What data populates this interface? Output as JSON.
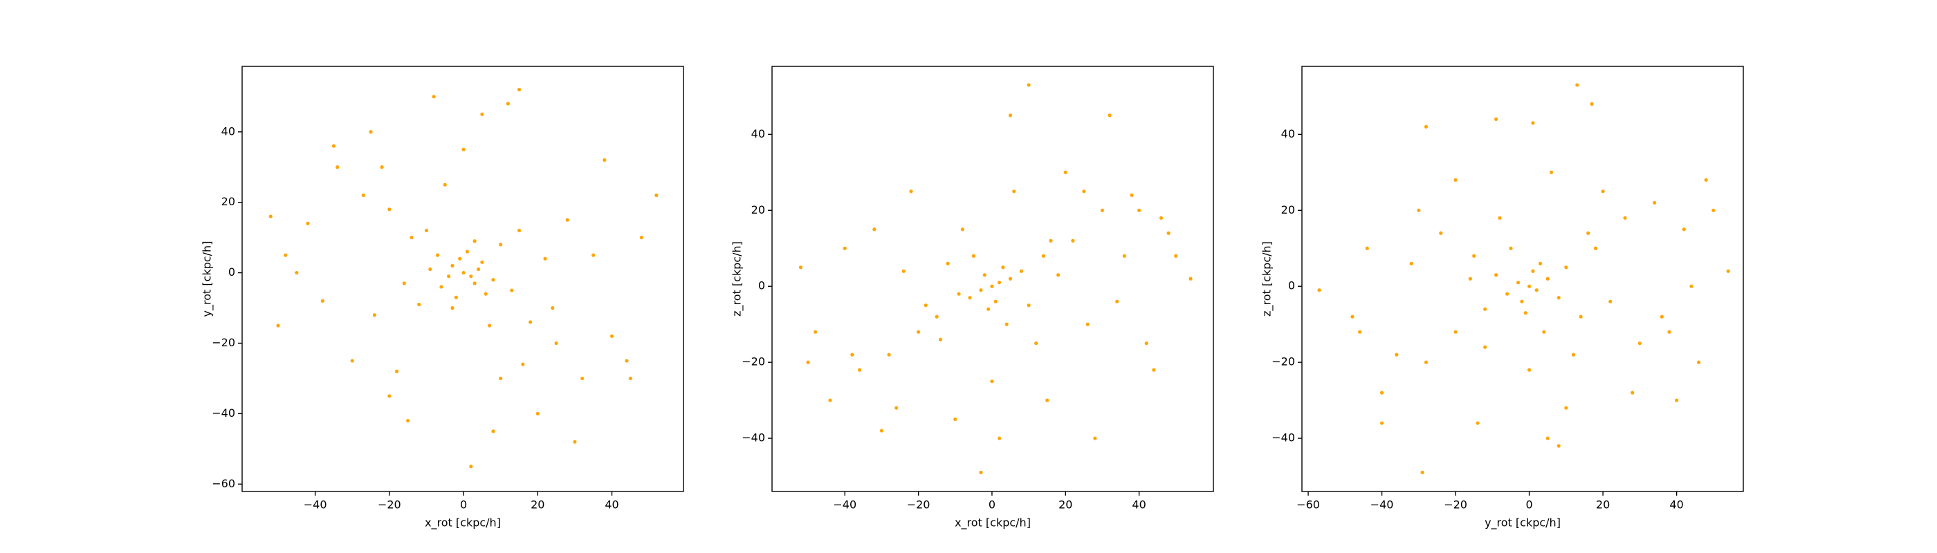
{
  "chart_data": [
    {
      "type": "scatter",
      "xlabel": "x_rot [ckpc/h]",
      "ylabel": "y_rot [ckpc/h]",
      "color": "orange",
      "xlim": [
        -59.7,
        59.3
      ],
      "ylim": [
        -62.1,
        58.6
      ],
      "xticks": [
        {
          "value": -40,
          "label": "−40"
        },
        {
          "value": -20,
          "label": "−20"
        },
        0,
        20,
        40
      ],
      "yticks": [
        {
          "value": -60,
          "label": "−60"
        },
        {
          "value": -40,
          "label": "−40"
        },
        {
          "value": -20,
          "label": "−20"
        },
        0,
        20,
        40
      ],
      "x": [
        0,
        2,
        -3,
        5,
        -6,
        1,
        -2,
        8,
        -9,
        3,
        -1,
        4,
        -4,
        6,
        -7,
        10,
        -12,
        13,
        -14,
        15,
        -16,
        18,
        -20,
        22,
        -24,
        25,
        -27,
        28,
        -30,
        32,
        -34,
        35,
        -38,
        40,
        -42,
        44,
        -45,
        48,
        -50,
        52,
        -52,
        5,
        -8,
        12,
        20,
        -15,
        2,
        30,
        -25,
        10,
        -5,
        0,
        -18,
        24,
        -10,
        7,
        3,
        -3,
        16,
        -22,
        38,
        -35,
        15,
        -20,
        8,
        45,
        -48
      ],
      "y": [
        0,
        -1,
        2,
        3,
        -4,
        6,
        -7,
        -2,
        1,
        -3,
        4,
        1,
        -1,
        -6,
        5,
        8,
        -9,
        -5,
        10,
        12,
        -3,
        -14,
        18,
        4,
        -12,
        -20,
        22,
        15,
        -25,
        -30,
        30,
        5,
        -8,
        -18,
        14,
        -25,
        0,
        10,
        -15,
        22,
        16,
        45,
        50,
        48,
        -40,
        -42,
        -55,
        -48,
        40,
        -30,
        25,
        35,
        -28,
        -10,
        12,
        -15,
        9,
        -10,
        -26,
        30,
        32,
        36,
        52,
        -35,
        -45,
        -30,
        5
      ]
    },
    {
      "type": "scatter",
      "xlabel": "x_rot [ckpc/h]",
      "ylabel": "z_rot [ckpc/h]",
      "color": "orange",
      "xlim": [
        -59.8,
        60.2
      ],
      "ylim": [
        -54.0,
        57.9
      ],
      "xticks": [
        {
          "value": -40,
          "label": "−40"
        },
        {
          "value": -20,
          "label": "−20"
        },
        0,
        20,
        40
      ],
      "yticks": [
        {
          "value": -40,
          "label": "−40"
        },
        {
          "value": -20,
          "label": "−20"
        },
        0,
        20,
        40
      ],
      "x": [
        0,
        2,
        -3,
        5,
        -6,
        1,
        -2,
        8,
        -9,
        3,
        -1,
        10,
        -12,
        14,
        -15,
        18,
        -20,
        22,
        -24,
        26,
        -28,
        30,
        -32,
        34,
        -36,
        38,
        -40,
        42,
        -44,
        46,
        -48,
        50,
        -52,
        54,
        5,
        10,
        -3,
        28,
        -30,
        32,
        -22,
        20,
        15,
        -10,
        0,
        6,
        -18,
        12,
        -8,
        25,
        -38,
        40,
        44,
        -50,
        48,
        -5,
        4,
        16,
        -14,
        2,
        -26,
        36
      ],
      "y": [
        0,
        1,
        -1,
        2,
        -3,
        -4,
        3,
        4,
        -2,
        5,
        -6,
        -5,
        6,
        8,
        -8,
        3,
        -12,
        12,
        4,
        -10,
        -18,
        20,
        15,
        -4,
        -22,
        24,
        10,
        -15,
        -30,
        18,
        -12,
        8,
        5,
        2,
        45,
        53,
        -49,
        -40,
        -38,
        45,
        25,
        30,
        -30,
        -35,
        -25,
        25,
        -5,
        -15,
        15,
        25,
        -18,
        20,
        -22,
        -20,
        14,
        8,
        -10,
        12,
        -14,
        -40,
        -32,
        8
      ]
    },
    {
      "type": "scatter",
      "xlabel": "y_rot [ckpc/h]",
      "ylabel": "z_rot [ckpc/h]",
      "color": "orange",
      "xlim": [
        -61.7,
        58.1
      ],
      "ylim": [
        -54.0,
        57.9
      ],
      "xticks": [
        {
          "value": -60,
          "label": "−60"
        },
        {
          "value": -40,
          "label": "−40"
        },
        {
          "value": -20,
          "label": "−20"
        },
        0,
        20,
        40
      ],
      "yticks": [
        {
          "value": -40,
          "label": "−40"
        },
        {
          "value": -20,
          "label": "−20"
        },
        0,
        20,
        40
      ],
      "x": [
        0,
        2,
        -3,
        5,
        -6,
        1,
        -2,
        8,
        -9,
        3,
        -1,
        10,
        -12,
        14,
        -15,
        18,
        -20,
        22,
        -24,
        26,
        -28,
        30,
        -32,
        34,
        -36,
        38,
        -40,
        42,
        -44,
        46,
        -48,
        50,
        -57,
        54,
        13,
        -9,
        -29,
        17,
        1,
        5,
        -20,
        20,
        10,
        -14,
        0,
        6,
        -16,
        12,
        -8,
        28,
        -40,
        48,
        40,
        -46,
        44,
        -5,
        4,
        16,
        -12,
        8,
        -30,
        36,
        -28
      ],
      "y": [
        0,
        -1,
        1,
        2,
        -2,
        4,
        -4,
        -3,
        3,
        6,
        -7,
        5,
        -6,
        -8,
        8,
        10,
        -12,
        -4,
        14,
        18,
        -20,
        -15,
        6,
        22,
        -18,
        -12,
        -28,
        15,
        10,
        -20,
        -8,
        20,
        -1,
        4,
        53,
        44,
        -49,
        48,
        43,
        -40,
        28,
        25,
        -32,
        -36,
        -22,
        30,
        2,
        -18,
        18,
        -28,
        -36,
        28,
        -30,
        -12,
        0,
        10,
        -12,
        14,
        -16,
        -42,
        20,
        -8,
        42
      ]
    }
  ]
}
